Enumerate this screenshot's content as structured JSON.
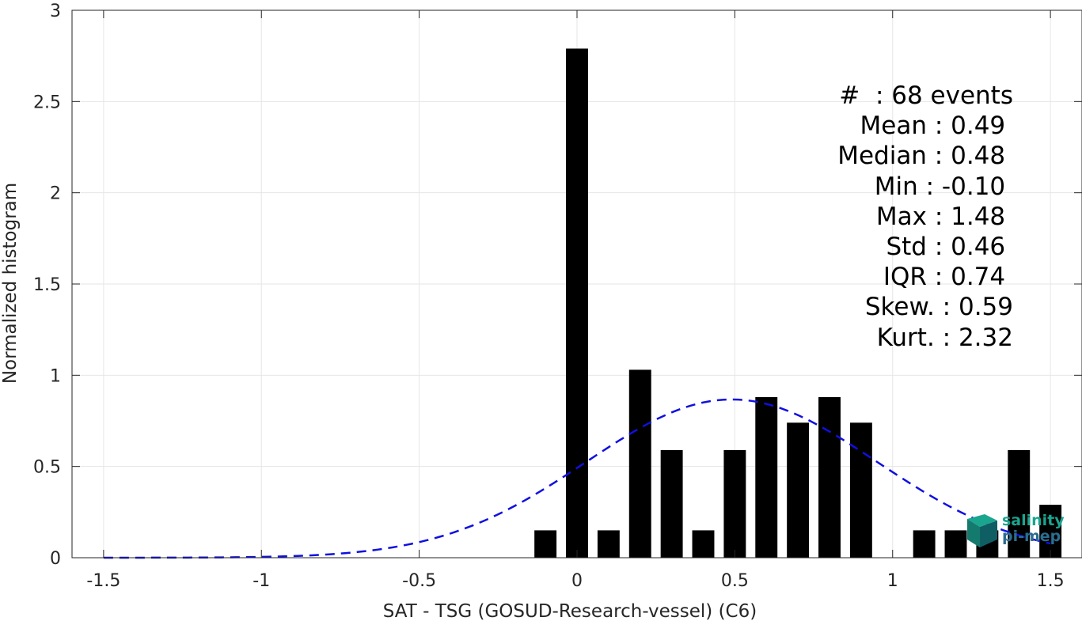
{
  "chart_data": {
    "type": "bar",
    "xlabel": "SAT - TSG (GOSUD-Research-vessel) (C6)",
    "ylabel": "Normalized histogram",
    "xlim": [
      -1.6,
      1.6
    ],
    "ylim": [
      0,
      3
    ],
    "xticks": [
      "-1.5",
      "-1",
      "-0.5",
      "0",
      "0.5",
      "1",
      "1.5"
    ],
    "yticks": [
      "0",
      "0.5",
      "1",
      "1.5",
      "2",
      "2.5",
      "3"
    ],
    "grid": true,
    "bar_color": "#000000",
    "bar_width": 0.07,
    "bars": {
      "x": [
        -0.1,
        0.0,
        0.1,
        0.2,
        0.3,
        0.4,
        0.5,
        0.6,
        0.7,
        0.8,
        0.9,
        1.1,
        1.2,
        1.3,
        1.4,
        1.5
      ],
      "values": [
        0.15,
        2.79,
        0.15,
        1.03,
        0.59,
        0.15,
        0.59,
        0.88,
        0.74,
        0.88,
        0.74,
        0.15,
        0.15,
        0.15,
        0.59,
        0.29
      ]
    },
    "fit_curve": {
      "type": "normal",
      "mean": 0.49,
      "std": 0.46,
      "x_range": [
        -1.5,
        1.5
      ],
      "color": "#1010e0",
      "style": "dashed"
    },
    "stats_box": [
      "#  : 68 events",
      "Mean : 0.49 ",
      "Median : 0.48 ",
      "Min : -0.10 ",
      "Max : 1.48 ",
      "Std : 0.46 ",
      "IQR : 0.74 ",
      "Skew. : 0.59",
      "Kurt. : 2.32"
    ]
  },
  "logo": {
    "line1": "salinity",
    "line2": "pi-mep",
    "colors": {
      "primary": "#1aa58f",
      "secondary": "#2a6d8f"
    }
  }
}
